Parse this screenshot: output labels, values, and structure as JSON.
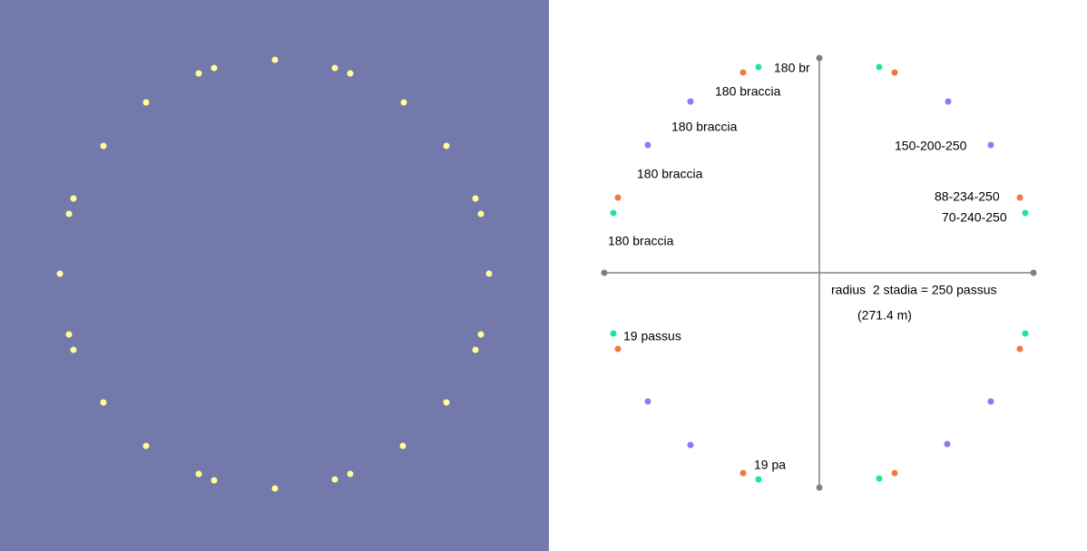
{
  "labels": {
    "top_short": "180 br",
    "braccia_1": "180 braccia",
    "braccia_2": "180 braccia",
    "braccia_3": "180 braccia",
    "braccia_4": "180 braccia",
    "blue_code": "150-200-250",
    "orange_code": "88-234-250",
    "green_code": "70-240-250",
    "radius": "radius  2 stadia = 250 passus",
    "metric": "(271.4 m)",
    "passus": "19 passus",
    "passus_short": "19 pa"
  }
}
